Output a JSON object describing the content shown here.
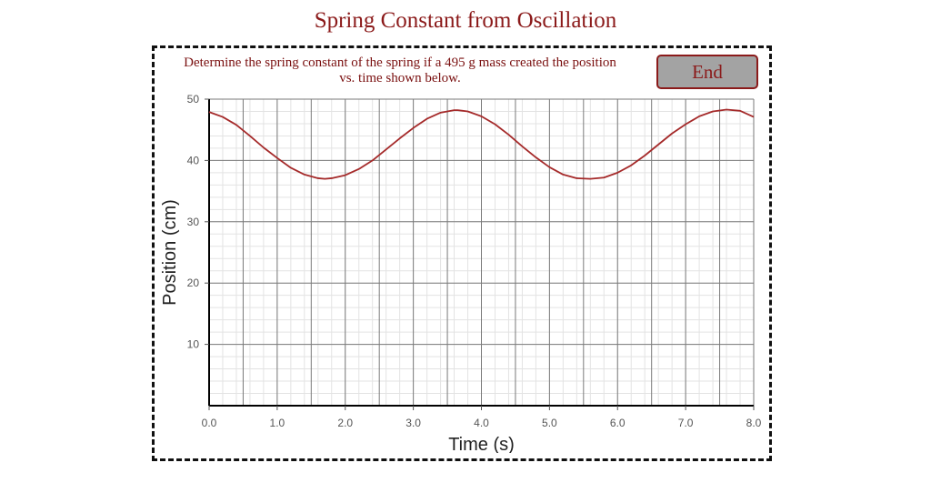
{
  "title": "Spring Constant from Oscillation",
  "instructions": "Determine the spring constant of the spring if a 495 g mass created the position vs. time shown below.",
  "end_button": {
    "label": "End"
  },
  "colors": {
    "accent": "#8b1a1a",
    "curve": "#a52a2a",
    "button_bg": "#a3a3a3"
  },
  "chart_data": {
    "type": "line",
    "title": "",
    "xlabel": "Time (s)",
    "ylabel": "Position (cm)",
    "xlim": [
      0,
      8
    ],
    "ylim": [
      0,
      50
    ],
    "xticks": [
      "0.0",
      "1.0",
      "2.0",
      "3.0",
      "4.0",
      "5.0",
      "6.0",
      "7.0",
      "8.0"
    ],
    "yticks": [
      "10",
      "20",
      "30",
      "40",
      "50"
    ],
    "grid": true,
    "series": [
      {
        "color": "#a52a2a",
        "x": [
          0,
          0.2,
          0.4,
          0.6,
          0.8,
          1.0,
          1.2,
          1.4,
          1.6,
          1.7,
          1.8,
          2.0,
          2.2,
          2.4,
          2.6,
          2.8,
          3.0,
          3.2,
          3.4,
          3.6,
          3.65,
          3.8,
          4.0,
          4.2,
          4.4,
          4.6,
          4.8,
          5.0,
          5.2,
          5.4,
          5.6,
          5.8,
          6.0,
          6.2,
          6.4,
          6.6,
          6.8,
          7.0,
          7.2,
          7.4,
          7.6,
          7.8,
          8.0
        ],
        "y": [
          47.9,
          47.1,
          45.8,
          44.0,
          42.1,
          40.4,
          38.8,
          37.7,
          37.1,
          37.0,
          37.1,
          37.6,
          38.6,
          40.0,
          41.8,
          43.6,
          45.3,
          46.8,
          47.8,
          48.2,
          48.2,
          48.0,
          47.2,
          45.9,
          44.2,
          42.3,
          40.5,
          38.9,
          37.7,
          37.1,
          37.0,
          37.2,
          38.0,
          39.2,
          40.8,
          42.6,
          44.4,
          45.9,
          47.2,
          48.0,
          48.3,
          48.1,
          47.1
        ]
      }
    ]
  }
}
